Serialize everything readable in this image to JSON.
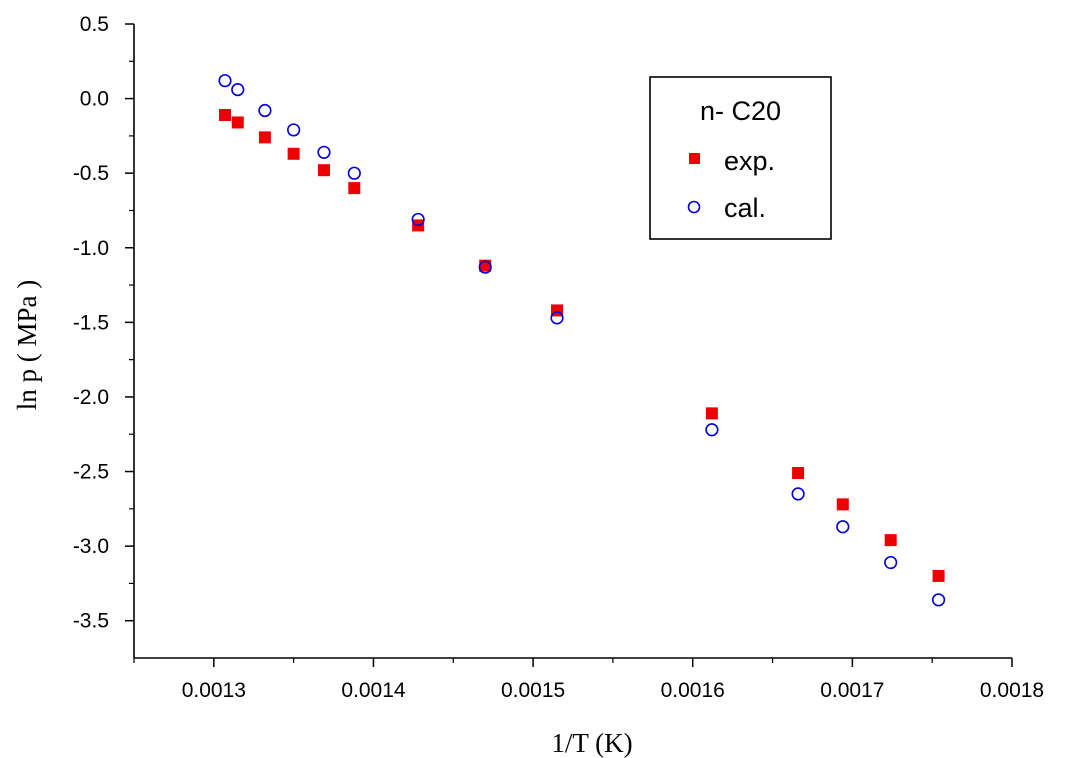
{
  "chart_data": {
    "type": "scatter",
    "xlabel": "1/T (K)",
    "ylabel": "ln p ( MPa )",
    "xlim": [
      0.00125,
      0.0018
    ],
    "ylim": [
      -3.75,
      0.5
    ],
    "x_ticks": [
      0.0013,
      0.0014,
      0.0015,
      0.0016,
      0.0017,
      0.0018
    ],
    "x_tick_labels": [
      "0.0013",
      "0.0014",
      "0.0015",
      "0.0016",
      "0.0017",
      "0.0018"
    ],
    "y_ticks": [
      0.5,
      0.0,
      -0.5,
      -1.0,
      -1.5,
      -2.0,
      -2.5,
      -3.0,
      -3.5
    ],
    "y_tick_labels": [
      "0.5",
      "0.0",
      "-0.5",
      "-1.0",
      "-1.5",
      "-2.0",
      "-2.5",
      "-3.0",
      "-3.5"
    ],
    "grid": false,
    "legend_position": "top-right",
    "legend_title": "n- C20",
    "series": [
      {
        "name": "exp.",
        "marker": "filled-square",
        "color": "#ee0000",
        "x": [
          0.001307,
          0.001315,
          0.001332,
          0.00135,
          0.001369,
          0.001388,
          0.001428,
          0.00147,
          0.001515,
          0.001612,
          0.001666,
          0.001694,
          0.001724,
          0.001754
        ],
        "y": [
          -0.11,
          -0.16,
          -0.26,
          -0.37,
          -0.48,
          -0.6,
          -0.85,
          -1.12,
          -1.42,
          -2.11,
          -2.51,
          -2.72,
          -2.96,
          -3.2
        ]
      },
      {
        "name": "cal.",
        "marker": "open-circle",
        "color": "#0000dd",
        "x": [
          0.001307,
          0.001315,
          0.001332,
          0.00135,
          0.001369,
          0.001388,
          0.001428,
          0.00147,
          0.001515,
          0.001612,
          0.001666,
          0.001694,
          0.001724,
          0.001754
        ],
        "y": [
          0.12,
          0.06,
          -0.08,
          -0.21,
          -0.36,
          -0.5,
          -0.81,
          -1.13,
          -1.47,
          -2.22,
          -2.65,
          -2.87,
          -3.11,
          -3.36
        ]
      }
    ]
  }
}
